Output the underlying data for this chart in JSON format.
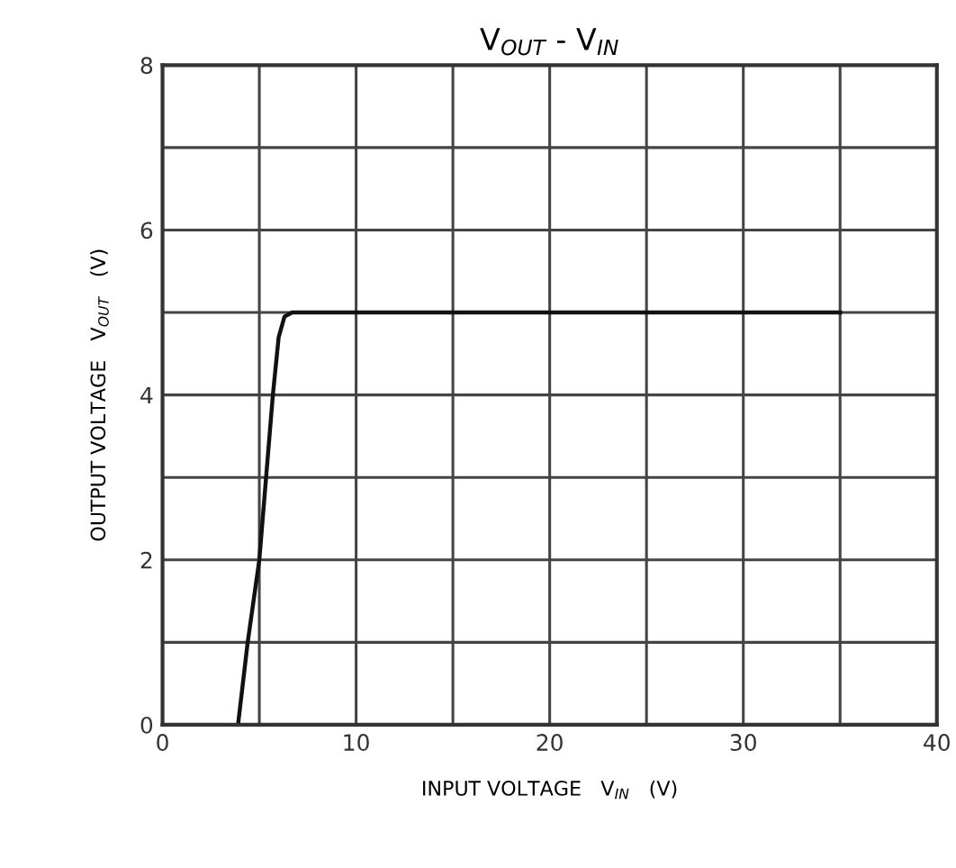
{
  "chart_data": {
    "type": "line",
    "title": "V$_{OUT}$ - V$_{IN}$",
    "xlabel": "INPUT VOLTAGE   V$_{IN}$   (V)",
    "ylabel": "OUTPUT VOLTAGE   V$_{OUT}$   (V)",
    "x": [
      3.9,
      4.4,
      5.0,
      5.7,
      6.0,
      6.3,
      6.7,
      35
    ],
    "series": [
      {
        "color": "#111111",
        "values": [
          0,
          1,
          2,
          4,
          4.7,
          4.95,
          5,
          5
        ]
      }
    ],
    "xlim": [
      0,
      40
    ],
    "ylim": [
      0,
      8
    ],
    "xticks": [
      0,
      {
        "value": 5,
        "label": null
      },
      10,
      {
        "value": 15,
        "label": null
      },
      20,
      {
        "value": 25,
        "label": null
      },
      30,
      {
        "value": 35,
        "label": null
      },
      40
    ],
    "yticks": [
      0,
      {
        "value": 1,
        "label": null
      },
      2,
      {
        "value": 3,
        "label": null
      },
      4,
      {
        "value": 5,
        "label": null
      },
      6,
      {
        "value": 7,
        "label": null
      },
      8
    ],
    "grid": true,
    "marker": "none",
    "line_style": "solid"
  }
}
